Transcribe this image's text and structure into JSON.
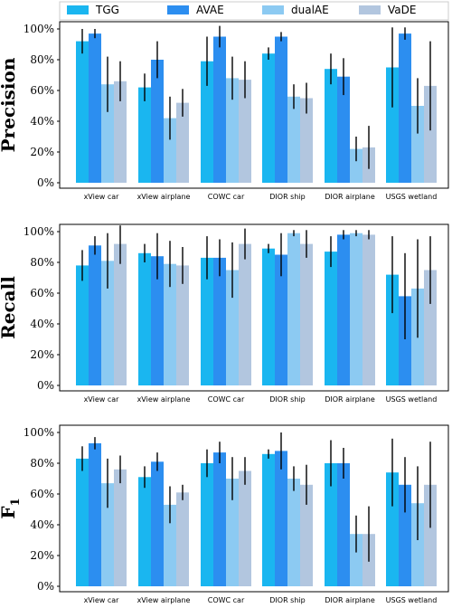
{
  "legend": [
    {
      "name": "TGG",
      "color": "#1ab6f0"
    },
    {
      "name": "AVAE",
      "color": "#2c8ef0"
    },
    {
      "name": "dualAE",
      "color": "#8ccaf2"
    },
    {
      "name": "VaDE",
      "color": "#b2c6df"
    }
  ],
  "chart_data": [
    {
      "type": "bar",
      "ylabel": "Precision",
      "ylim": [
        0,
        100
      ],
      "yticks": [
        "0%",
        "20%",
        "40%",
        "60%",
        "80%",
        "100%"
      ],
      "categories": [
        "xView car",
        "xView airplane",
        "COWC car",
        "DIOR ship",
        "DIOR airplane",
        "USGS wetland"
      ],
      "series": [
        {
          "name": "TGG",
          "values": [
            92,
            62,
            79,
            84,
            74,
            75
          ],
          "err": [
            8,
            9,
            16,
            4,
            10,
            26
          ]
        },
        {
          "name": "AVAE",
          "values": [
            97,
            80,
            95,
            95,
            69,
            97
          ],
          "err": [
            3,
            12,
            7,
            3,
            12,
            4
          ]
        },
        {
          "name": "dualAE",
          "values": [
            64,
            42,
            68,
            56,
            22,
            50
          ],
          "err": [
            18,
            14,
            14,
            8,
            8,
            18
          ]
        },
        {
          "name": "VaDE",
          "values": [
            66,
            52,
            67,
            55,
            23,
            63
          ],
          "err": [
            13,
            9,
            12,
            10,
            14,
            29
          ]
        }
      ]
    },
    {
      "type": "bar",
      "ylabel": "Recall",
      "ylim": [
        0,
        100
      ],
      "yticks": [
        "0%",
        "20%",
        "40%",
        "60%",
        "80%",
        "100%"
      ],
      "categories": [
        "xView car",
        "xView airplane",
        "COWC car",
        "DIOR ship",
        "DIOR airplane",
        "USGS wetland"
      ],
      "series": [
        {
          "name": "TGG",
          "values": [
            78,
            86,
            83,
            89,
            87,
            72
          ],
          "err": [
            10,
            6,
            14,
            3,
            10,
            25
          ]
        },
        {
          "name": "AVAE",
          "values": [
            91,
            84,
            83,
            85,
            98,
            58
          ],
          "err": [
            6,
            15,
            12,
            14,
            3,
            28
          ]
        },
        {
          "name": "dualAE",
          "values": [
            81,
            79,
            75,
            99,
            99,
            63
          ],
          "err": [
            18,
            15,
            18,
            2,
            2,
            32
          ]
        },
        {
          "name": "VaDE",
          "values": [
            92,
            78,
            92,
            92,
            98,
            75
          ],
          "err": [
            13,
            12,
            10,
            9,
            3,
            22
          ]
        }
      ]
    },
    {
      "type": "bar",
      "ylabel": "F",
      "ylabel_sub": "1",
      "ylim": [
        0,
        100
      ],
      "yticks": [
        "0%",
        "20%",
        "40%",
        "60%",
        "80%",
        "100%"
      ],
      "categories": [
        "xView car",
        "xView airplane",
        "COWC car",
        "DIOR ship",
        "DIOR airplane",
        "USGS wetland"
      ],
      "series": [
        {
          "name": "TGG",
          "values": [
            83,
            71,
            80,
            86,
            80,
            74
          ],
          "err": [
            8,
            7,
            9,
            3,
            15,
            22
          ]
        },
        {
          "name": "AVAE",
          "values": [
            93,
            81,
            87,
            88,
            80,
            66
          ],
          "err": [
            4,
            6,
            7,
            12,
            10,
            18
          ]
        },
        {
          "name": "dualAE",
          "values": [
            67,
            53,
            70,
            70,
            34,
            54
          ],
          "err": [
            16,
            12,
            14,
            8,
            12,
            24
          ]
        },
        {
          "name": "VaDE",
          "values": [
            76,
            61,
            75,
            66,
            34,
            66
          ],
          "err": [
            9,
            5,
            9,
            13,
            18,
            28
          ]
        }
      ]
    }
  ]
}
